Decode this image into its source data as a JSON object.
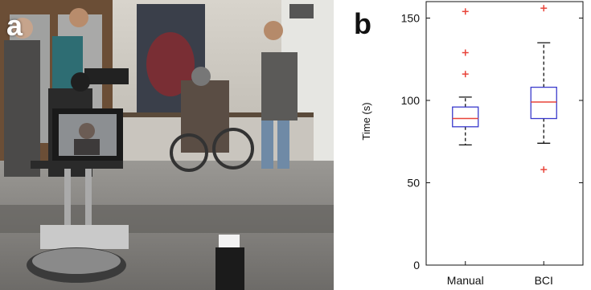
{
  "panels": {
    "a_label": "a",
    "b_label": "b"
  },
  "photo": {
    "description_icon": "photo-icon"
  },
  "chart_data": {
    "type": "box",
    "ylabel": "Time (s)",
    "xlabel": "",
    "ylim": [
      0,
      160
    ],
    "yticks": [
      0,
      50,
      100,
      150
    ],
    "categories": [
      "Manual",
      "BCI"
    ],
    "boxes": [
      {
        "category": "Manual",
        "whisker_low": 73,
        "q1": 84,
        "median": 89,
        "q3": 96,
        "whisker_high": 102,
        "outliers": [
          116,
          129,
          154
        ]
      },
      {
        "category": "BCI",
        "whisker_low": 74,
        "q1": 89,
        "median": 99,
        "q3": 108,
        "whisker_high": 135,
        "outliers": [
          58,
          156
        ]
      }
    ],
    "colors": {
      "box": "#3a3acc",
      "median": "#e8443a",
      "outlier": "#e8443a",
      "whisker": "#111111",
      "axis": "#111111"
    }
  }
}
